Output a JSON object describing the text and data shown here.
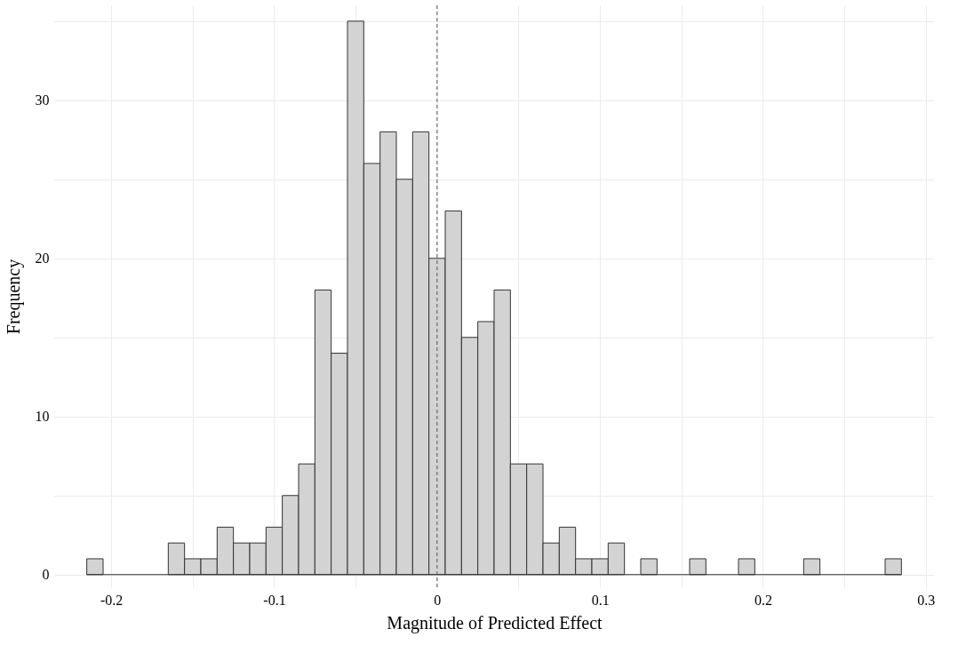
{
  "chart_data": {
    "type": "histogram",
    "xlabel": "Magnitude of Predicted Effect",
    "ylabel": "Frequency",
    "bins": [
      -0.215,
      -0.205,
      -0.195,
      -0.185,
      -0.175,
      -0.165,
      -0.155,
      -0.145,
      -0.135,
      -0.125,
      -0.115,
      -0.105,
      -0.095,
      -0.085,
      -0.075,
      -0.065,
      -0.055,
      -0.045,
      -0.035,
      -0.025,
      -0.015,
      -0.005,
      0.005,
      0.015,
      0.025,
      0.035,
      0.045,
      0.055,
      0.065,
      0.075,
      0.085,
      0.095,
      0.105,
      0.115,
      0.125,
      0.135,
      0.145,
      0.155,
      0.165,
      0.175,
      0.185,
      0.195,
      0.205,
      0.215,
      0.225,
      0.235,
      0.245,
      0.255,
      0.265,
      0.275,
      0.285
    ],
    "values": [
      1,
      0,
      0,
      0,
      0,
      2,
      1,
      1,
      3,
      2,
      2,
      3,
      5,
      7,
      18,
      14,
      35,
      26,
      28,
      25,
      28,
      20,
      23,
      15,
      16,
      18,
      7,
      7,
      2,
      3,
      1,
      1,
      2,
      0,
      1,
      0,
      0,
      1,
      0,
      0,
      1,
      0,
      0,
      0,
      1,
      0,
      0,
      0,
      0,
      1
    ],
    "color": "#d3d3d3",
    "xlim": [
      -0.235,
      0.305
    ],
    "xticks": [
      -0.2,
      {
        "value": -0.15,
        "label": null
      },
      -0.1,
      {
        "value": -0.05,
        "label": null
      },
      0,
      {
        "value": 0.05,
        "label": null
      },
      0.1,
      {
        "value": 0.15,
        "label": null
      },
      0.2,
      {
        "value": 0.25,
        "label": null
      },
      0.3
    ],
    "ylim": [
      -0.8,
      36
    ],
    "yticks": [
      0,
      {
        "value": 5,
        "label": null
      },
      10,
      {
        "value": 15,
        "label": null
      },
      20,
      {
        "value": 25,
        "label": null
      },
      30,
      {
        "value": 35,
        "label": null
      }
    ],
    "grid": true,
    "ref_lines": [
      {
        "axis": "x",
        "value": 0,
        "color": "#555555",
        "line_style": "dashed"
      }
    ]
  }
}
